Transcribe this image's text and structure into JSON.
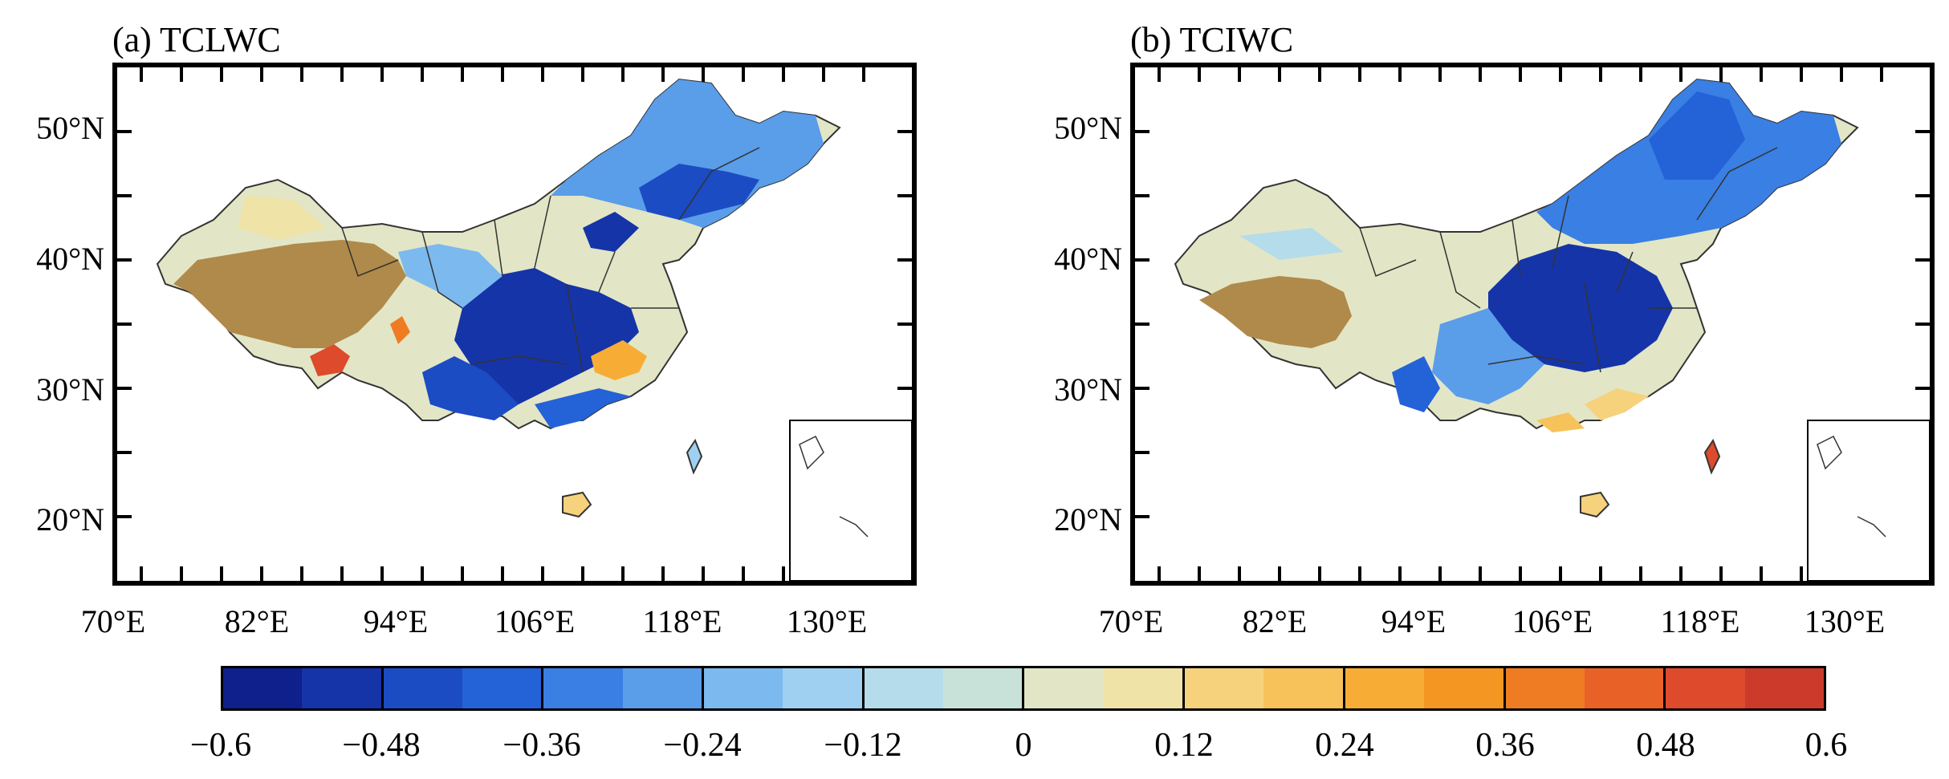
{
  "panels": [
    {
      "id": "a",
      "title": "(a) TCLWC"
    },
    {
      "id": "b",
      "title": "(b) TCIWC"
    }
  ],
  "axes": {
    "lat_labels": [
      "50°N",
      "40°N",
      "30°N",
      "20°N"
    ],
    "lon_labels": [
      "70°E",
      "82°E",
      "94°E",
      "106°E",
      "118°E",
      "130°E"
    ]
  },
  "colorbar": {
    "tick_labels": [
      "−0.6",
      "−0.48",
      "−0.36",
      "−0.24",
      "−0.12",
      "0",
      "0.12",
      "0.24",
      "0.36",
      "0.48",
      "0.6"
    ],
    "colors": [
      "#0f1f8c",
      "#1534a8",
      "#1b4cc4",
      "#2462d8",
      "#3a7fe3",
      "#5a9de9",
      "#7cb9ef",
      "#9fd0f1",
      "#b5dcea",
      "#c8e2da",
      "#e2e6c6",
      "#efe3a8",
      "#f6d27c",
      "#f7c25a",
      "#f7ad35",
      "#f49622",
      "#ef7c22",
      "#e86228",
      "#dd4a2c",
      "#cc3a2b"
    ]
  }
}
